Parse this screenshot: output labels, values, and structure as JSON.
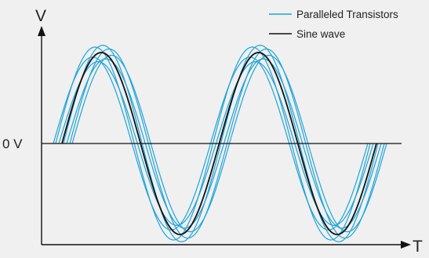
{
  "chart_data": {
    "type": "line",
    "title": "",
    "xlabel": "T",
    "ylabel": "V",
    "zero_label": "0 V",
    "x_range": [
      0,
      2
    ],
    "y_range": [
      -1.3,
      1.3
    ],
    "grid": false,
    "legend_position": "top-right",
    "legend": [
      {
        "label": "Paralleled Transistors",
        "color": "#1ea4d8"
      },
      {
        "label": "Sine wave",
        "color": "#111111"
      }
    ],
    "reference": {
      "name": "Sine wave",
      "color": "#111111",
      "function": "amplitude * sin(2*pi*(t - phase))",
      "amplitude": 1.0,
      "phase": 0.0,
      "t_start": 0.0,
      "t_end": 2.0
    },
    "series": [
      {
        "name": "Paralleled Transistors",
        "color": "#1ea4d8",
        "amplitude": 0.95,
        "phase": -0.055
      },
      {
        "name": "Paralleled Transistors",
        "color": "#1ea4d8",
        "amplitude": 1.06,
        "phase": -0.04
      },
      {
        "name": "Paralleled Transistors",
        "color": "#1ea4d8",
        "amplitude": 0.9,
        "phase": -0.02
      },
      {
        "name": "Paralleled Transistors",
        "color": "#1ea4d8",
        "amplitude": 1.08,
        "phase": 0.01
      },
      {
        "name": "Paralleled Transistors",
        "color": "#1ea4d8",
        "amplitude": 0.93,
        "phase": 0.03
      },
      {
        "name": "Paralleled Transistors",
        "color": "#1ea4d8",
        "amplitude": 1.04,
        "phase": 0.05
      },
      {
        "name": "Paralleled Transistors",
        "color": "#1ea4d8",
        "amplitude": 0.97,
        "phase": 0.065
      }
    ],
    "colors": {
      "axis": "#111111",
      "background": "#f0f0f0"
    }
  }
}
